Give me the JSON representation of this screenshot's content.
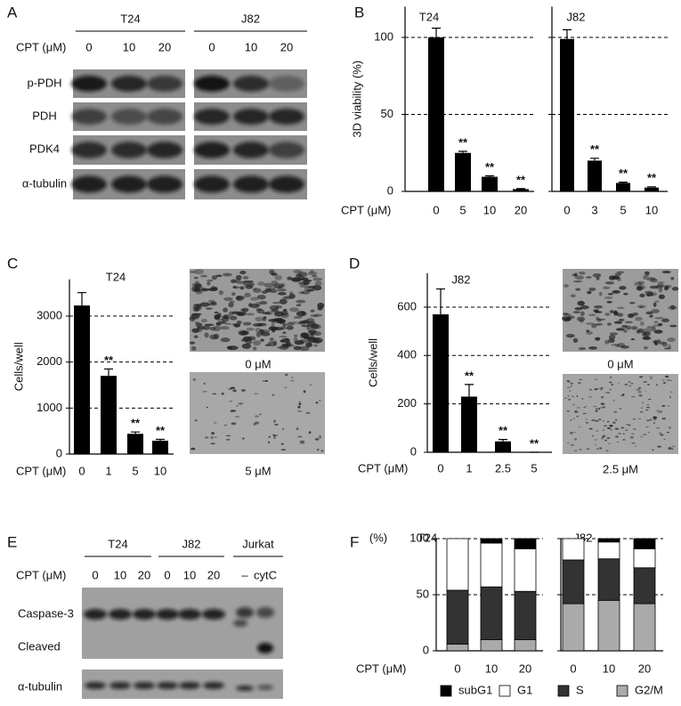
{
  "panels": [
    "A",
    "B",
    "C",
    "D",
    "E",
    "F"
  ],
  "blot_A": {
    "groups": [
      "T24",
      "J82"
    ],
    "condition_label": "CPT (μM)",
    "lanes": [
      "0",
      "10",
      "20",
      "0",
      "10",
      "20"
    ],
    "rows": [
      "p-PDH",
      "PDH",
      "PDK4",
      "α-tubulin"
    ]
  },
  "blot_E": {
    "groups": [
      "T24",
      "J82",
      "Jurkat"
    ],
    "condition_label": "CPT (μM)",
    "lanes": [
      "0",
      "10",
      "20",
      "0",
      "10",
      "20",
      "–",
      "cytC"
    ],
    "rows": [
      "Caspase-3",
      "Cleaved",
      "α-tubulin"
    ]
  },
  "micrographs": {
    "C": [
      "0 μM",
      "5 μM"
    ],
    "D": [
      "0 μM",
      "2.5 μM"
    ]
  },
  "chart_data": [
    {
      "type": "bar",
      "title": "T24",
      "x_label": "CPT (μM)",
      "y_label": "3D viability (%)",
      "categories": [
        "0",
        "5",
        "10",
        "20"
      ],
      "values": [
        100,
        25,
        9.5,
        1.5
      ],
      "errors": [
        6,
        1,
        0.6,
        0.3
      ],
      "annotations": [
        null,
        "**",
        "**",
        "**"
      ],
      "color": "#000000",
      "ylim": [
        0,
        120
      ],
      "yticks": [
        0,
        50,
        100
      ],
      "tick_labels": true,
      "grid": "dashed"
    },
    {
      "type": "bar",
      "title": "J82",
      "categories": [
        "0",
        "3",
        "5",
        "10"
      ],
      "values": [
        99,
        20,
        5.5,
        2.5
      ],
      "errors": [
        6,
        1.5,
        0.5,
        0.5
      ],
      "annotations": [
        null,
        "**",
        "**",
        "**"
      ],
      "color": "#000000",
      "ylim": [
        0,
        120
      ],
      "yticks": [
        0,
        50,
        100
      ],
      "tick_labels": false,
      "grid": "dashed"
    },
    {
      "type": "bar",
      "title": "T24",
      "x_label": "CPT (μM)",
      "y_label": "Cells/well",
      "categories": [
        "0",
        "1",
        "5",
        "10"
      ],
      "values": [
        3230,
        1700,
        440,
        290
      ],
      "errors": [
        280,
        150,
        40,
        30
      ],
      "annotations": [
        null,
        "**",
        "**",
        "**"
      ],
      "color": "#000000",
      "ylim": [
        0,
        3800
      ],
      "yticks": [
        0,
        1000,
        2000,
        3000
      ],
      "tick_labels": true,
      "grid": "dashed"
    },
    {
      "type": "bar",
      "title": "J82",
      "x_label": "CPT (μM)",
      "y_label": "Cells/well",
      "categories": [
        "0",
        "1",
        "2.5",
        "5"
      ],
      "values": [
        570,
        230,
        45,
        0
      ],
      "errors": [
        105,
        50,
        8,
        0
      ],
      "annotations": [
        null,
        "**",
        "**",
        "**"
      ],
      "color": "#000000",
      "ylim": [
        0,
        740
      ],
      "yticks": [
        0,
        200,
        400,
        600
      ],
      "tick_labels": true,
      "grid": "dashed"
    },
    {
      "type": "stacked_bar",
      "title": "T24",
      "x_label": "CPT (μM)",
      "y_label": "(%)",
      "categories": [
        "0",
        "10",
        "20"
      ],
      "series": [
        {
          "name": "subG1",
          "color": "#000000",
          "values": [
            0,
            4,
            9
          ]
        },
        {
          "name": "G1",
          "color": "#ffffff",
          "values": [
            46,
            39,
            38
          ]
        },
        {
          "name": "S",
          "color": "#333333",
          "values": [
            48,
            47,
            43
          ]
        },
        {
          "name": "G2/M",
          "color": "#aaaaaa",
          "values": [
            6,
            10,
            10
          ]
        }
      ],
      "ylim": [
        0,
        100
      ],
      "yticks": [
        0,
        50,
        100
      ],
      "tick_labels": true,
      "grid": "dashed"
    },
    {
      "type": "stacked_bar",
      "title": "J82",
      "categories": [
        "0",
        "10",
        "20"
      ],
      "series": [
        {
          "color": "#000000",
          "values": [
            0,
            3,
            9
          ]
        },
        {
          "color": "#ffffff",
          "values": [
            19,
            15,
            17
          ]
        },
        {
          "color": "#333333",
          "values": [
            39,
            37,
            32
          ]
        },
        {
          "color": "#aaaaaa",
          "values": [
            42,
            45,
            42
          ]
        }
      ],
      "ylim": [
        0,
        100
      ],
      "yticks": [
        0,
        50,
        100
      ],
      "tick_labels": false,
      "grid": "dashed"
    }
  ]
}
